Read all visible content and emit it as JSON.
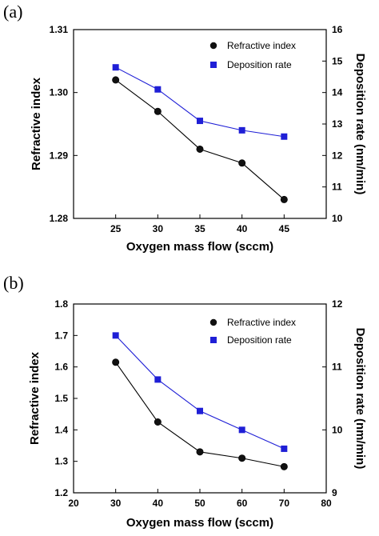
{
  "chart_data": [
    {
      "panel_label": "(a)",
      "type": "line",
      "xlabel": "Oxygen mass flow (sccm)",
      "ylabel": "Refractive index",
      "ylabel_right": "Deposition rate (nm/min)",
      "x": [
        25,
        30,
        35,
        40,
        45
      ],
      "xlim": [
        20,
        50
      ],
      "xticks": [
        25,
        30,
        35,
        40,
        45
      ],
      "ylim": [
        1.28,
        1.31
      ],
      "yticks": [
        "1.28",
        "1.29",
        "1.30",
        "1.31"
      ],
      "ylim_right": [
        10,
        16
      ],
      "yticks_right": [
        "10",
        "11",
        "12",
        "13",
        "14",
        "15",
        "16"
      ],
      "legend_position": "top-right",
      "series": [
        {
          "name": "Refractive index",
          "axis": "left",
          "marker": "circle",
          "color": "#000000",
          "values": [
            1.302,
            1.297,
            1.291,
            1.2888,
            1.283
          ]
        },
        {
          "name": "Deposition rate",
          "axis": "right",
          "marker": "square",
          "color": "#1f1fd6",
          "values": [
            14.8,
            14.1,
            13.1,
            12.8,
            12.6
          ]
        }
      ]
    },
    {
      "panel_label": "(b)",
      "type": "line",
      "xlabel": "Oxygen mass flow (sccm)",
      "ylabel": "Refractive index",
      "ylabel_right": "Deposition rate (nm/min)",
      "x": [
        30,
        40,
        50,
        60,
        70
      ],
      "xlim": [
        20,
        80
      ],
      "xticks": [
        20,
        30,
        40,
        50,
        60,
        70,
        80
      ],
      "ylim": [
        1.2,
        1.8
      ],
      "yticks": [
        "1.2",
        "1.3",
        "1.4",
        "1.5",
        "1.6",
        "1.7",
        "1.8"
      ],
      "ylim_right": [
        9,
        12
      ],
      "yticks_right": [
        "9",
        "10",
        "11",
        "12"
      ],
      "legend_position": "top-right",
      "series": [
        {
          "name": "Refractive index",
          "axis": "left",
          "marker": "circle",
          "color": "#000000",
          "values": [
            1.615,
            1.425,
            1.33,
            1.31,
            1.283
          ]
        },
        {
          "name": "Deposition rate",
          "axis": "right",
          "marker": "square",
          "color": "#1f1fd6",
          "values": [
            11.5,
            10.8,
            10.3,
            10.0,
            9.7
          ]
        }
      ]
    }
  ]
}
